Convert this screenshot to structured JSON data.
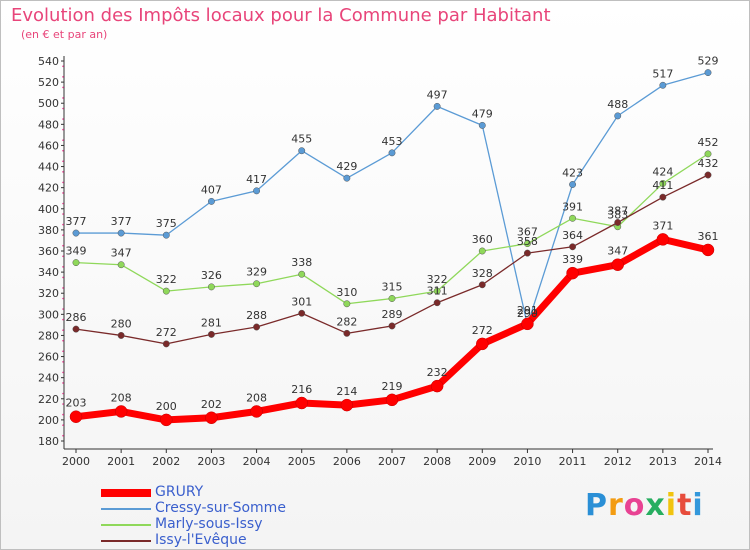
{
  "title": "Evolution des Impôts locaux pour la Commune par Habitant",
  "subtitle": "(en € et par an)",
  "logo": {
    "letters": [
      "P",
      "r",
      "o",
      "x",
      "i",
      "t",
      "i"
    ],
    "colors": [
      "#2a8fd6",
      "#f39c12",
      "#e84393",
      "#27ae60",
      "#f1c40f",
      "#e74c3c",
      "#3498db"
    ]
  },
  "chart_data": {
    "type": "line",
    "title": "Evolution des Impôts locaux pour la Commune par Habitant",
    "ylabel": "(en € et par an)",
    "x": [
      "2000",
      "2001",
      "2002",
      "2003",
      "2004",
      "2005",
      "2006",
      "2007",
      "2008",
      "2009",
      "2010",
      "2011",
      "2012",
      "2013",
      "2014"
    ],
    "ylim": [
      180,
      540
    ],
    "yticks": [
      "180",
      "200",
      "220",
      "240",
      "260",
      "280",
      "300",
      "320",
      "340",
      "360",
      "380",
      "400",
      "420",
      "440",
      "460",
      "480",
      "500",
      "520",
      "540"
    ],
    "grid": false,
    "legend": "bottom-left",
    "series": [
      {
        "name": "GRURY",
        "color": "#ff0000",
        "values": [
          203,
          208,
          200,
          202,
          208,
          216,
          214,
          219,
          232,
          272,
          291,
          339,
          347,
          371,
          361
        ],
        "labels": [
          "203",
          "208",
          "200",
          "202",
          "208",
          "216",
          "214",
          "219",
          "232",
          "272",
          "291",
          "339",
          "347",
          "371",
          "361"
        ]
      },
      {
        "name": "Cressy-sur-Somme",
        "color": "#5b9bd5",
        "values": [
          377,
          377,
          375,
          407,
          417,
          455,
          429,
          453,
          497,
          479,
          290,
          423,
          488,
          517,
          529
        ],
        "labels": [
          "377",
          "377",
          "375",
          "407",
          "417",
          "455",
          "429",
          "453",
          "497",
          "479",
          "290",
          "423",
          "488",
          "517",
          "529"
        ]
      },
      {
        "name": "Marly-sous-Issy",
        "color": "#8fd85a",
        "values": [
          349,
          347,
          322,
          326,
          329,
          338,
          310,
          315,
          322,
          360,
          367,
          391,
          383,
          424,
          452
        ],
        "labels": [
          "349",
          "347",
          "322",
          "326",
          "329",
          "338",
          "310",
          "315",
          "322",
          "360",
          "367",
          "391",
          "383",
          "424",
          "452"
        ]
      },
      {
        "name": "Issy-l'Evêque",
        "color": "#7a2a2a",
        "values": [
          286,
          280,
          272,
          281,
          288,
          301,
          282,
          289,
          311,
          328,
          358,
          364,
          387,
          411,
          432
        ],
        "labels": [
          "286",
          "280",
          "272",
          "281",
          "288",
          "301",
          "282",
          "289",
          "311",
          "328",
          "358",
          "364",
          "387",
          "411",
          "432"
        ]
      }
    ]
  }
}
